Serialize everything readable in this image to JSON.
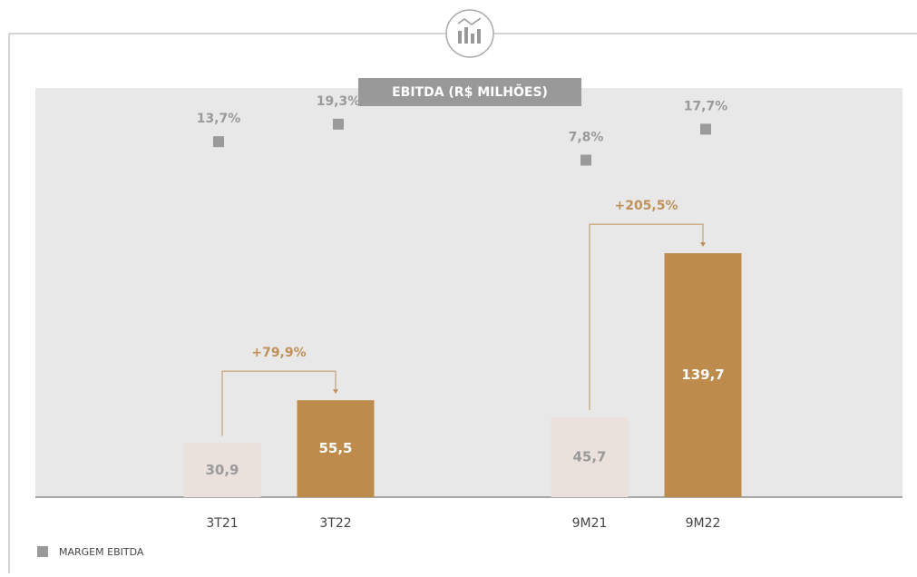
{
  "chart_data": {
    "type": "bar",
    "title": "EBITDA (R$ MILHÕES)",
    "categories": [
      "3T21",
      "3T22",
      "9M21",
      "9M22"
    ],
    "values": [
      30.9,
      55.5,
      45.7,
      139.7
    ],
    "value_labels": [
      "30,9",
      "55,5",
      "45,7",
      "139,7"
    ],
    "colors": [
      "#eae1dc",
      "#bd8c4c",
      "#eae1dc",
      "#bd8c4c"
    ],
    "label_colors": [
      "#9a9a9a",
      "#ffffff",
      "#9a9a9a",
      "#ffffff"
    ],
    "ylim": [
      0,
      160
    ],
    "series": [
      {
        "name": "MARGEM EBITDA",
        "color": "#9a9a9a",
        "axis": "y2",
        "values": [
          13.7,
          19.3,
          7.8,
          17.7
        ],
        "value_labels": [
          "13,7%",
          "19,3%",
          "7,8%",
          "17,7%"
        ]
      }
    ],
    "y2lim": [
      -100,
      30
    ],
    "annotations": [
      "+79,9%",
      "+205,5%"
    ],
    "annotation_color": "#c0925a"
  }
}
